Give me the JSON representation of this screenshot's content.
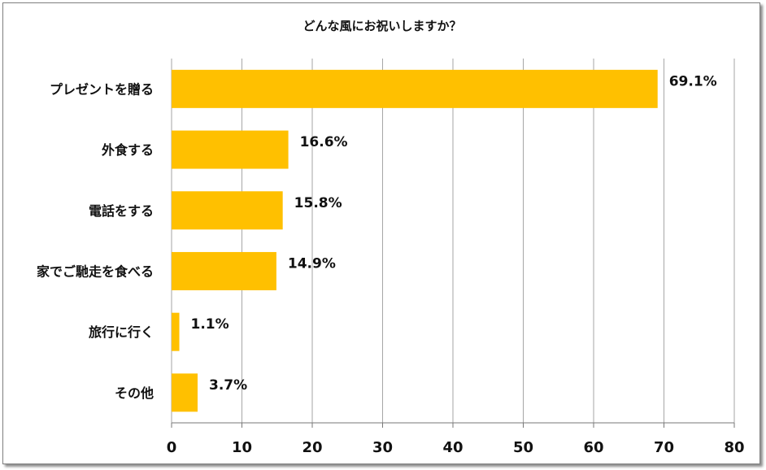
{
  "chart_data": {
    "type": "bar",
    "orientation": "horizontal",
    "title": "どんな風にお祝いしますか？",
    "categories": [
      "プレゼントを贈る",
      "外食する",
      "電話をする",
      "家でご馳走を食べる",
      "旅行に行く",
      "その他"
    ],
    "values": [
      69.1,
      16.6,
      15.8,
      14.9,
      1.1,
      3.7
    ],
    "value_labels": [
      "69.1%",
      "16.6%",
      "15.8%",
      "14.9%",
      "1.1%",
      "3.7%"
    ],
    "xlim": [
      0,
      80
    ],
    "xticks": [
      0,
      10,
      20,
      30,
      40,
      50,
      60,
      70,
      80
    ],
    "grid": true,
    "bar_color": "#FFC000",
    "grid_color": "#a6a6a6"
  }
}
